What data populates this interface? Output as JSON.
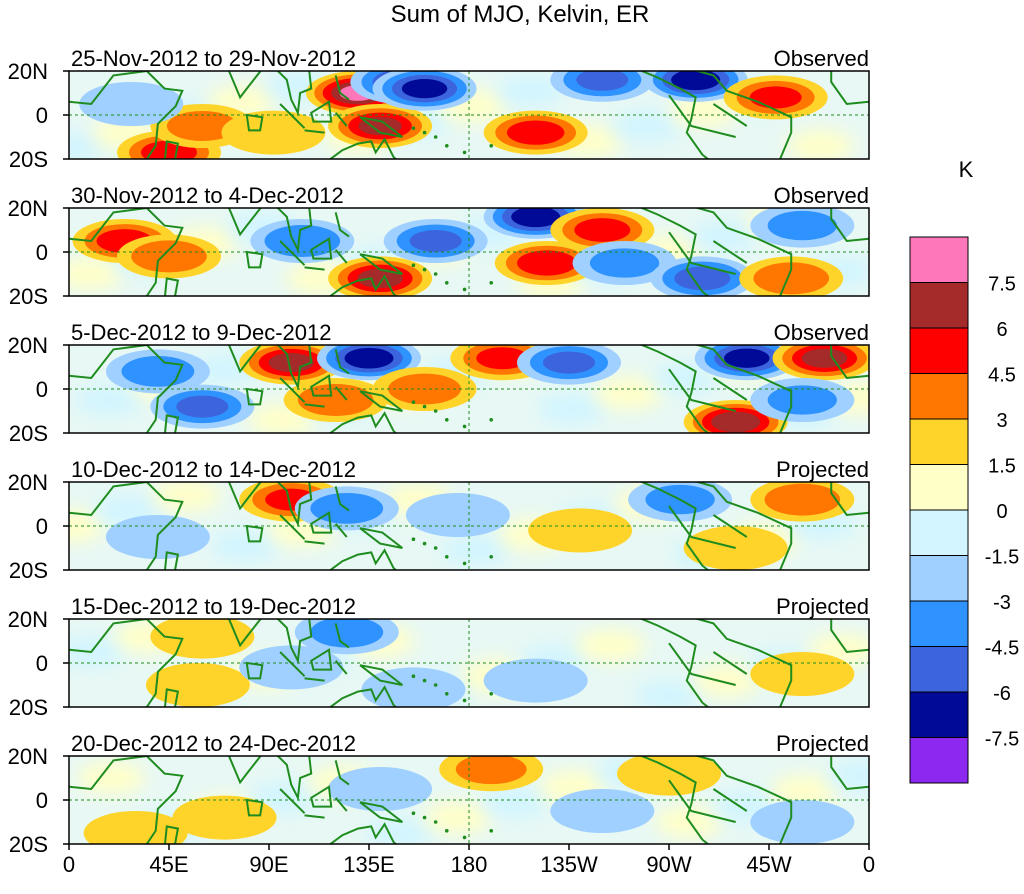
{
  "chart_data": {
    "type": "heatmap",
    "title": "Sum of MJO, Kelvin, ER",
    "lat_ticks": [
      "20N",
      "0",
      "20S"
    ],
    "lon_ticks": [
      "0",
      "45E",
      "90E",
      "135E",
      "180",
      "135W",
      "90W",
      "45W",
      "0"
    ],
    "lon_range": [
      0,
      360
    ],
    "lat_range": [
      -20,
      20
    ],
    "colorbar": {
      "unit": "K",
      "levels": [
        "7.5",
        "6",
        "4.5",
        "3",
        "1.5",
        "0",
        "-1.5",
        "-3",
        "-4.5",
        "-6",
        "-7.5"
      ],
      "colors": [
        "#ff77bb",
        "#a52a2a",
        "#ff0000",
        "#ff7700",
        "#ffd42a",
        "#ffffc8",
        "#d2f5ff",
        "#a0d0ff",
        "#2e92ff",
        "#3c64dc",
        "#000a96",
        "#8c28f0"
      ]
    },
    "panels": [
      {
        "period": "25-Nov-2012 to 29-Nov-2012",
        "status": "Observed",
        "blobs": [
          {
            "lon": 130,
            "lat": 10,
            "v": 7.8
          },
          {
            "lon": 140,
            "lat": -5,
            "v": 6.2
          },
          {
            "lon": 150,
            "lat": 15,
            "v": -5.5
          },
          {
            "lon": 160,
            "lat": 12,
            "v": -6.5
          },
          {
            "lon": 210,
            "lat": -8,
            "v": 5.2
          },
          {
            "lon": 240,
            "lat": 16,
            "v": -4.5
          },
          {
            "lon": 282,
            "lat": 16,
            "v": -7.0
          },
          {
            "lon": 318,
            "lat": 8,
            "v": 4.5
          },
          {
            "lon": 45,
            "lat": -17,
            "v": 5.0
          },
          {
            "lon": 60,
            "lat": -5,
            "v": 3.2
          },
          {
            "lon": 92,
            "lat": -8,
            "v": 2.5
          },
          {
            "lon": 28,
            "lat": 5,
            "v": -2.5
          }
        ]
      },
      {
        "period": "30-Nov-2012 to 4-Dec-2012",
        "status": "Observed",
        "blobs": [
          {
            "lon": 25,
            "lat": 5,
            "v": 5.0
          },
          {
            "lon": 45,
            "lat": -2,
            "v": 4.0
          },
          {
            "lon": 140,
            "lat": -12,
            "v": 6.5
          },
          {
            "lon": 105,
            "lat": 5,
            "v": -4.0
          },
          {
            "lon": 165,
            "lat": 5,
            "v": -4.5
          },
          {
            "lon": 210,
            "lat": 16,
            "v": -7.0
          },
          {
            "lon": 240,
            "lat": 10,
            "v": 5.0
          },
          {
            "lon": 215,
            "lat": -5,
            "v": 5.5
          },
          {
            "lon": 250,
            "lat": -5,
            "v": -3.0
          },
          {
            "lon": 285,
            "lat": -12,
            "v": -5.0
          },
          {
            "lon": 325,
            "lat": -12,
            "v": 4.0
          },
          {
            "lon": 330,
            "lat": 12,
            "v": -3.0
          }
        ]
      },
      {
        "period": "5-Dec-2012 to 9-Dec-2012",
        "status": "Observed",
        "blobs": [
          {
            "lon": 100,
            "lat": 12,
            "v": 6.5
          },
          {
            "lon": 135,
            "lat": 14,
            "v": -7.0
          },
          {
            "lon": 120,
            "lat": -5,
            "v": 4.0
          },
          {
            "lon": 60,
            "lat": -8,
            "v": -4.5
          },
          {
            "lon": 40,
            "lat": 8,
            "v": -3.5
          },
          {
            "lon": 195,
            "lat": 14,
            "v": 4.5
          },
          {
            "lon": 225,
            "lat": 12,
            "v": -4.5
          },
          {
            "lon": 300,
            "lat": -15,
            "v": 7.0
          },
          {
            "lon": 305,
            "lat": 14,
            "v": -6.5
          },
          {
            "lon": 340,
            "lat": 14,
            "v": 6.5
          },
          {
            "lon": 160,
            "lat": 0,
            "v": 3.5
          },
          {
            "lon": 330,
            "lat": -5,
            "v": -3.0
          }
        ]
      },
      {
        "period": "10-Dec-2012 to 14-Dec-2012",
        "status": "Projected",
        "blobs": [
          {
            "lon": 100,
            "lat": 12,
            "v": 4.5
          },
          {
            "lon": 125,
            "lat": 8,
            "v": -3.5
          },
          {
            "lon": 175,
            "lat": 5,
            "v": -2.0
          },
          {
            "lon": 230,
            "lat": -2,
            "v": 2.2
          },
          {
            "lon": 275,
            "lat": 12,
            "v": -3.0
          },
          {
            "lon": 330,
            "lat": 12,
            "v": 4.0
          },
          {
            "lon": 300,
            "lat": -10,
            "v": 2.0
          },
          {
            "lon": 40,
            "lat": -5,
            "v": -1.8
          }
        ]
      },
      {
        "period": "15-Dec-2012 to 19-Dec-2012",
        "status": "Projected",
        "blobs": [
          {
            "lon": 125,
            "lat": 14,
            "v": -3.5
          },
          {
            "lon": 155,
            "lat": -12,
            "v": -2.5
          },
          {
            "lon": 210,
            "lat": -8,
            "v": -2.0
          },
          {
            "lon": 60,
            "lat": 12,
            "v": 2.5
          },
          {
            "lon": 58,
            "lat": -10,
            "v": 2.0
          },
          {
            "lon": 330,
            "lat": -5,
            "v": 2.0
          },
          {
            "lon": 100,
            "lat": -2,
            "v": -2.0
          }
        ]
      },
      {
        "period": "20-Dec-2012 to 24-Dec-2012",
        "status": "Projected",
        "blobs": [
          {
            "lon": 190,
            "lat": 14,
            "v": 3.2
          },
          {
            "lon": 30,
            "lat": -15,
            "v": 2.5
          },
          {
            "lon": 70,
            "lat": -8,
            "v": 1.8
          },
          {
            "lon": 140,
            "lat": 5,
            "v": -2.0
          },
          {
            "lon": 240,
            "lat": -5,
            "v": -2.0
          },
          {
            "lon": 270,
            "lat": 12,
            "v": 2.0
          },
          {
            "lon": 330,
            "lat": -10,
            "v": -1.8
          }
        ]
      }
    ]
  }
}
